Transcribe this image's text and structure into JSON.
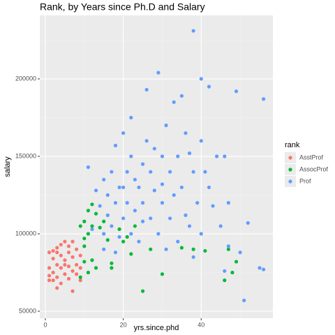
{
  "chart_data": {
    "type": "scatter",
    "title": "Rank, by Years since Ph.D and Salary",
    "x_label": "yrs.since.phd",
    "y_label": "salary",
    "legend_title": "rank",
    "legend_position": "right",
    "grid": true,
    "xlim": [
      -1.43,
      58.4
    ],
    "ylim": [
      45500,
      241000
    ],
    "xticks": [
      0,
      20,
      40
    ],
    "yticks": [
      50000,
      100000,
      150000,
      200000
    ],
    "xminor": [
      10,
      30,
      50
    ],
    "yminor": [
      75000,
      125000,
      175000,
      225000
    ],
    "series": [
      {
        "name": "AsstProf",
        "color": "#F8766D",
        "x": [
          1,
          1,
          1,
          2,
          2,
          2,
          2,
          3,
          3,
          3,
          3,
          4,
          4,
          4,
          4,
          5,
          5,
          5,
          5,
          6,
          6,
          6,
          6,
          7,
          7,
          7,
          8,
          8,
          8,
          9,
          9,
          9,
          3,
          1,
          7
        ],
        "values": [
          88000,
          73000,
          78000,
          89000,
          75000,
          84000,
          70000,
          91000,
          80000,
          72000,
          65000,
          93000,
          86000,
          78000,
          68000,
          95000,
          83000,
          74000,
          80000,
          88000,
          79000,
          71000,
          92000,
          85000,
          76000,
          63000,
          90000,
          80000,
          74000,
          86000,
          78000,
          70000,
          88000,
          70000,
          95000
        ]
      },
      {
        "name": "AssocProf",
        "color": "#00BA38",
        "x": [
          9,
          10,
          10,
          10,
          11,
          11,
          11,
          12,
          12,
          12,
          13,
          13,
          14,
          15,
          16,
          17,
          17,
          19,
          20,
          21,
          22,
          23,
          25,
          27,
          30,
          35,
          38,
          41,
          46,
          47,
          49,
          48,
          9,
          10
        ],
        "values": [
          105000,
          97000,
          82000,
          108000,
          115000,
          100000,
          75000,
          119000,
          105000,
          83000,
          113000,
          78000,
          104000,
          108000,
          96000,
          81000,
          78000,
          103000,
          95000,
          98000,
          87000,
          105000,
          63000,
          90000,
          74000,
          91000,
          90000,
          89000,
          70000,
          90000,
          82000,
          75000,
          72000,
          92000
        ]
      },
      {
        "name": "Prof",
        "color": "#619CFF",
        "x": [
          11,
          12,
          13,
          14,
          15,
          15,
          16,
          16,
          17,
          17,
          18,
          18,
          19,
          19,
          20,
          20,
          21,
          21,
          22,
          22,
          22,
          23,
          23,
          24,
          24,
          25,
          25,
          26,
          26,
          27,
          27,
          28,
          28,
          29,
          29,
          30,
          30,
          31,
          31,
          32,
          32,
          33,
          33,
          34,
          34,
          35,
          35,
          36,
          36,
          37,
          37,
          38,
          38,
          39,
          40,
          40,
          40,
          41,
          42,
          42,
          43,
          44,
          45,
          46,
          47,
          49,
          50,
          51,
          52,
          55,
          56,
          56,
          46,
          47,
          38,
          30,
          25,
          20,
          15,
          18
        ],
        "values": [
          143000,
          103000,
          128000,
          118000,
          135000,
          100000,
          125000,
          112000,
          140000,
          105000,
          120000,
          157000,
          130000,
          98000,
          165000,
          110000,
          140000,
          120000,
          175000,
          150000,
          100000,
          135000,
          115000,
          130000,
          95000,
          145000,
          120000,
          193000,
          160000,
          140000,
          110000,
          155000,
          128000,
          204000,
          100000,
          150000,
          120000,
          170000,
          90000,
          140000,
          110000,
          185000,
          125000,
          150000,
          95000,
          189000,
          130000,
          112000,
          165000,
          152000,
          105000,
          231000,
          140000,
          120000,
          200000,
          160000,
          100000,
          140000,
          195000,
          130000,
          118000,
          150000,
          105000,
          150000,
          120000,
          192000,
          88000,
          57000,
          107000,
          78000,
          187000,
          77000,
          76000,
          92000,
          85000,
          132000,
          108000,
          130000,
          90000,
          88000
        ]
      }
    ]
  }
}
